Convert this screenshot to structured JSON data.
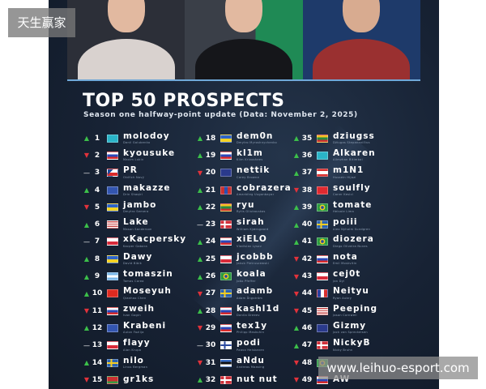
{
  "title": "TOP 50 PROSPECTS",
  "subtitle": "Season one halfway-point update (Data: November 2, 2025)",
  "watermarks": {
    "top_left": "天生赢家",
    "bottom_right": "www.leihuo-esport.com"
  },
  "colors": {
    "up": "#3cc04a",
    "down": "#e2323b",
    "background": "#172234"
  },
  "columns": [
    [
      {
        "rank": "1",
        "trend": "up",
        "flag": "kz",
        "nick": "molodoy",
        "name": "Danil Golubenko"
      },
      {
        "rank": "2",
        "trend": "down",
        "flag": "ru",
        "nick": "kyousuke",
        "name": "Maxim Lukin"
      },
      {
        "rank": "3",
        "trend": "same",
        "flag": "cz",
        "nick": "PR",
        "name": "Oldřich Nový"
      },
      {
        "rank": "4",
        "trend": "up",
        "flag": "xk",
        "nick": "makazze",
        "name": "Drin Shaqiri"
      },
      {
        "rank": "5",
        "trend": "down",
        "flag": "ua",
        "nick": "jambo",
        "name": "Dmytro Semera"
      },
      {
        "rank": "6",
        "trend": "up",
        "flag": "us",
        "nick": "Lake",
        "name": "Mason Sanderson"
      },
      {
        "rank": "7",
        "trend": "same",
        "flag": "pl",
        "nick": "xKacpersky",
        "name": "Kacper Gabara"
      },
      {
        "rank": "8",
        "trend": "up",
        "flag": "ua",
        "nick": "Dawy",
        "name": "David Bibik"
      },
      {
        "rank": "9",
        "trend": "up",
        "flag": "ar",
        "nick": "tomaszin",
        "name": "Tomas Corea"
      },
      {
        "rank": "10",
        "trend": "up",
        "flag": "cn",
        "nick": "Moseyuh",
        "name": "Qianhao Chen"
      },
      {
        "rank": "11",
        "trend": "down",
        "flag": "ru",
        "nick": "zweih",
        "name": "Ivan Gogin"
      },
      {
        "rank": "12",
        "trend": "up",
        "flag": "xk",
        "nick": "Krabeni",
        "name": "Aulon Fazlija"
      },
      {
        "rank": "13",
        "trend": "same",
        "flag": "pl",
        "nick": "flayy",
        "name": "Alan Krupa"
      },
      {
        "rank": "14",
        "trend": "up",
        "flag": "se",
        "nick": "nilo",
        "name": "Linus Bergman"
      },
      {
        "rank": "15",
        "trend": "down",
        "flag": "by",
        "nick": "gr1ks",
        "name": ""
      }
    ],
    [
      {
        "rank": "18",
        "trend": "up",
        "flag": "ua",
        "nick": "dem0n",
        "name": "Dmytro Myroshnychenko"
      },
      {
        "rank": "19",
        "trend": "up",
        "flag": "ru",
        "nick": "kl1m",
        "name": "Klim Krivosheev"
      },
      {
        "rank": "20",
        "trend": "down",
        "flag": "nz",
        "nick": "nettik",
        "name": "Corey Browne"
      },
      {
        "rank": "21",
        "trend": "up",
        "flag": "mn",
        "nick": "cobrazera",
        "name": "Amarbileg Uuganbayar"
      },
      {
        "rank": "22",
        "trend": "up",
        "flag": "lt",
        "nick": "ryu",
        "name": "Rytis Gliukauskas"
      },
      {
        "rank": "23",
        "trend": "same",
        "flag": "dk",
        "nick": "sirah",
        "name": "William Kjærsgaard"
      },
      {
        "rank": "24",
        "trend": "up",
        "flag": "ru",
        "nick": "xiELO",
        "name": "Vladislav Lysov"
      },
      {
        "rank": "25",
        "trend": "up",
        "flag": "pl",
        "nick": "jcobbb",
        "name": "Jakub Pietruszewski"
      },
      {
        "rank": "26",
        "trend": "up",
        "flag": "br",
        "nick": "koala",
        "name": "João Pfeffer"
      },
      {
        "rank": "27",
        "trend": "down",
        "flag": "se",
        "nick": "adamb",
        "name": "Adam Ångström"
      },
      {
        "rank": "28",
        "trend": "up",
        "flag": "ru",
        "nick": "kashl1d",
        "name": "Danila Dreeev"
      },
      {
        "rank": "29",
        "trend": "down",
        "flag": "ru",
        "nick": "tex1y",
        "name": "Philipp Maskuhin"
      },
      {
        "rank": "30",
        "trend": "same",
        "flag": "fi",
        "nick": "podi",
        "name": "Paavo Heiskanen"
      },
      {
        "rank": "31",
        "trend": "down",
        "flag": "ee",
        "nick": "aNdu",
        "name": "Andreas Maasing"
      },
      {
        "rank": "32",
        "trend": "up",
        "flag": "dk",
        "nick": "nut nut",
        "name": ""
      }
    ],
    [
      {
        "rank": "35",
        "trend": "up",
        "flag": "lt",
        "nick": "dziugss",
        "name": "Džiugas Stepanavičius"
      },
      {
        "rank": "36",
        "trend": "up",
        "flag": "kz",
        "nick": "Alkaren",
        "name": "Alimzhan Bitimbai"
      },
      {
        "rank": "37",
        "trend": "up",
        "flag": "lb",
        "nick": "m1N1",
        "name": "Hussein Hijazi"
      },
      {
        "rank": "38",
        "trend": "down",
        "flag": "tr",
        "nick": "soulfly",
        "name": "Caner Kesici"
      },
      {
        "rank": "39",
        "trend": "up",
        "flag": "br",
        "nick": "tomate",
        "name": "Heisale Lima"
      },
      {
        "rank": "40",
        "trend": "up",
        "flag": "se",
        "nick": "poiii",
        "name": "Alex Nyholm Sundgren"
      },
      {
        "rank": "41",
        "trend": "up",
        "flag": "br",
        "nick": "diozera",
        "name": "Diego Oliveira Nunes"
      },
      {
        "rank": "42",
        "trend": "down",
        "flag": "ru",
        "nick": "nota",
        "name": "Emil Moskvitin"
      },
      {
        "rank": "43",
        "trend": "down",
        "flag": "pl",
        "nick": "cej0t",
        "name": "Jan Dyl"
      },
      {
        "rank": "44",
        "trend": "down",
        "flag": "fr",
        "nick": "Neityu",
        "name": "Ryan Aubry"
      },
      {
        "rank": "45",
        "trend": "down",
        "flag": "us",
        "nick": "Peeping",
        "name": "Jason Cornwell"
      },
      {
        "rank": "46",
        "trend": "up",
        "flag": "gb",
        "nick": "Gizmy",
        "name": "Jack van Spreckelsen"
      },
      {
        "rank": "47",
        "trend": "up",
        "flag": "dk",
        "nick": "NickyB",
        "name": "Nicky Bruhn"
      },
      {
        "rank": "48",
        "trend": "down",
        "flag": "br",
        "nick": "",
        "name": ""
      },
      {
        "rank": "49",
        "trend": "down",
        "flag": "ru",
        "nick": "AW",
        "name": ""
      }
    ]
  ]
}
